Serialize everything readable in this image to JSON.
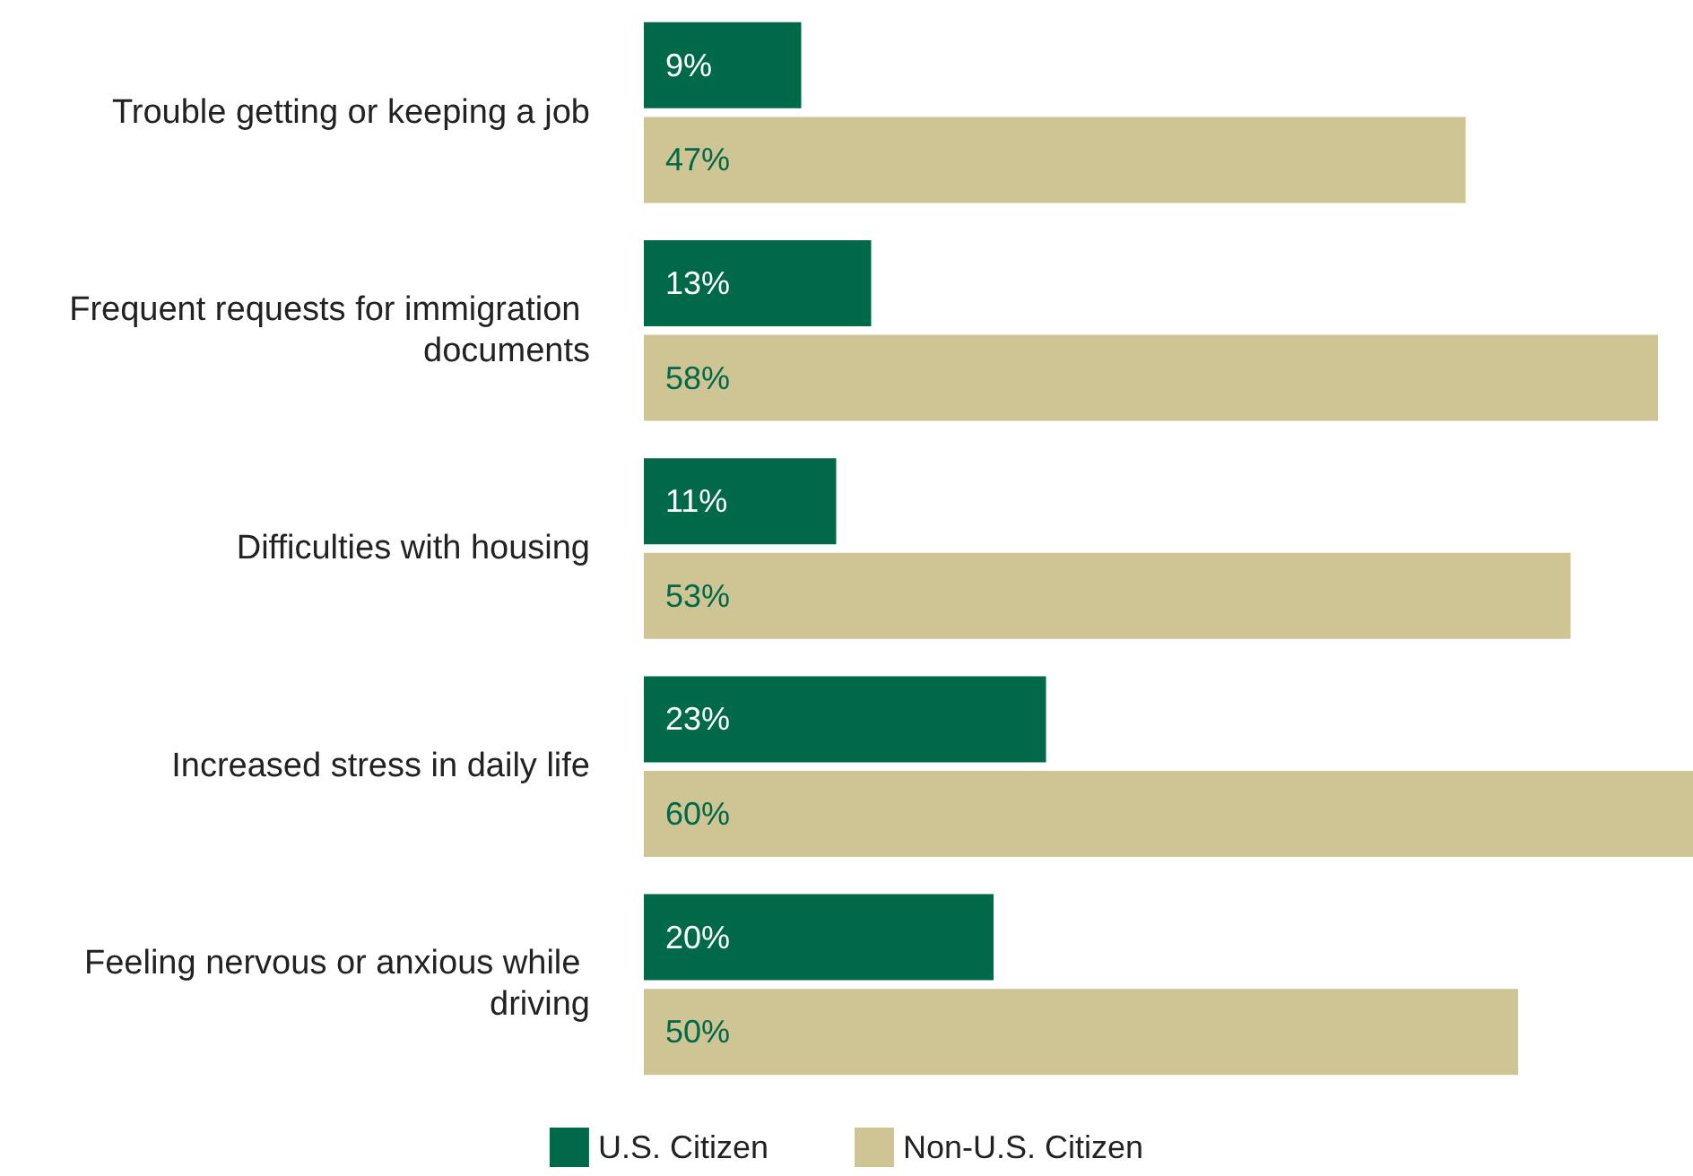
{
  "chart_data": {
    "type": "bar",
    "orientation": "horizontal",
    "legend": "bottom",
    "categories": [
      "Trouble getting or keeping a job",
      "Frequent requests for immigration documents",
      "Difficulties with housing",
      "Increased stress in daily life",
      "Feeling nervous or anxious while driving"
    ],
    "series": [
      {
        "name": "U.S. Citizen",
        "color": "#00694a",
        "values": [
          9,
          13,
          11,
          23,
          20
        ],
        "value_labels": [
          "9%",
          "13%",
          "11%",
          "23%",
          "20%"
        ]
      },
      {
        "name": "Non-U.S. Citizen",
        "color": "#cfc594",
        "values": [
          47,
          58,
          53,
          60,
          50
        ],
        "value_labels": [
          "47%",
          "58%",
          "53%",
          "60%",
          "50%"
        ]
      }
    ]
  }
}
